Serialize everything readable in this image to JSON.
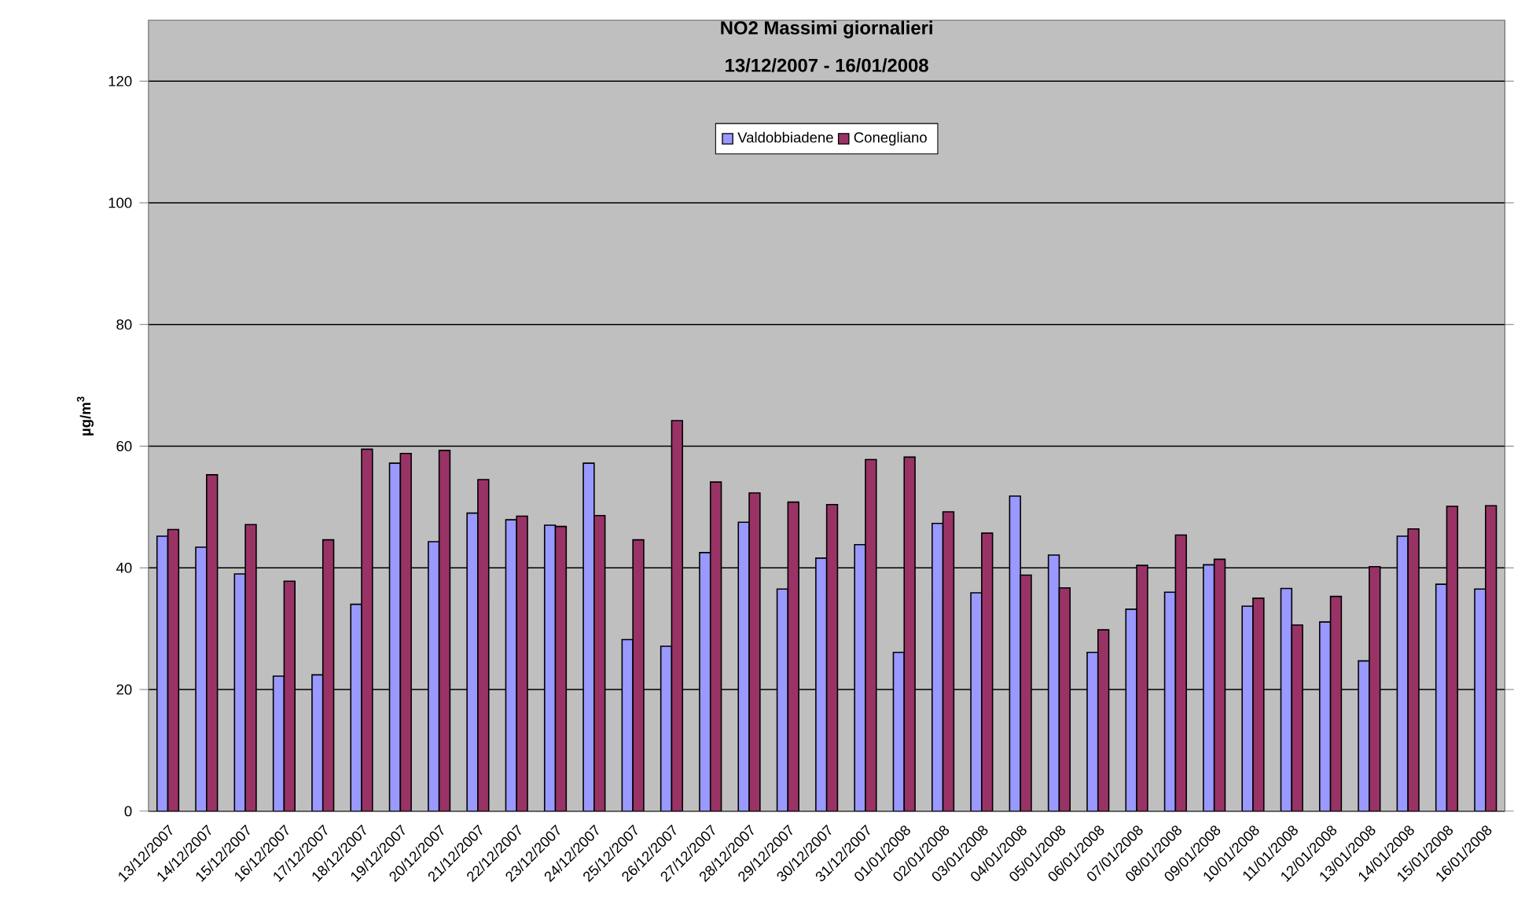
{
  "chart_data": {
    "type": "bar",
    "title": "NO2 Massimi giornalieri",
    "subtitle": "13/12/2007 - 16/01/2008",
    "ylabel": "µg/m$^{3}$",
    "categories": [
      "13/12/2007",
      "14/12/2007",
      "15/12/2007",
      "16/12/2007",
      "17/12/2007",
      "18/12/2007",
      "19/12/2007",
      "20/12/2007",
      "21/12/2007",
      "22/12/2007",
      "23/12/2007",
      "24/12/2007",
      "25/12/2007",
      "26/12/2007",
      "27/12/2007",
      "28/12/2007",
      "29/12/2007",
      "30/12/2007",
      "31/12/2007",
      "01/01/2008",
      "02/01/2008",
      "03/01/2008",
      "04/01/2008",
      "05/01/2008",
      "06/01/2008",
      "07/01/2008",
      "08/01/2008",
      "09/01/2008",
      "10/01/2008",
      "11/01/2008",
      "12/01/2008",
      "13/01/2008",
      "14/01/2008",
      "15/01/2008",
      "16/01/2008"
    ],
    "series": [
      {
        "name": "Valdobbiadene",
        "color": "#9999ff",
        "values": [
          45.2,
          43.4,
          39.0,
          22.2,
          22.4,
          34.0,
          57.2,
          44.3,
          49.0,
          47.9,
          47.0,
          57.2,
          28.2,
          27.1,
          42.5,
          47.5,
          36.5,
          41.6,
          43.8,
          26.1,
          47.3,
          35.9,
          51.8,
          42.1,
          26.1,
          33.2,
          36.0,
          40.5,
          33.7,
          36.6,
          31.1,
          24.7,
          45.2,
          37.3,
          36.5
        ]
      },
      {
        "name": "Conegliano",
        "color": "#993366",
        "values": [
          46.3,
          55.3,
          47.1,
          37.8,
          44.6,
          59.5,
          58.8,
          59.3,
          54.5,
          48.5,
          46.8,
          48.6,
          44.6,
          64.2,
          54.1,
          52.3,
          50.8,
          50.4,
          57.8,
          58.2,
          49.2,
          45.7,
          38.8,
          36.7,
          29.8,
          40.4,
          45.4,
          41.4,
          35.0,
          30.6,
          35.3,
          40.2,
          46.4,
          50.1,
          50.2
        ]
      }
    ],
    "ylim": [
      0,
      130
    ],
    "yticks": [
      0,
      20,
      40,
      60,
      80,
      100,
      120
    ],
    "grid": "y",
    "legend": "top"
  }
}
